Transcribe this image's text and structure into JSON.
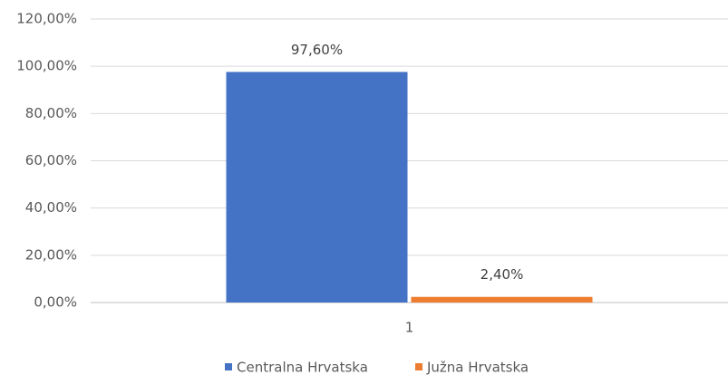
{
  "chart_data": {
    "type": "bar",
    "categories": [
      "1"
    ],
    "series": [
      {
        "name": "Centralna Hrvatska",
        "color": "#4472c4",
        "values": [
          97.6
        ],
        "value_labels": [
          "97,60%"
        ]
      },
      {
        "name": "Južna Hrvatska",
        "color": "#ed7d31",
        "values": [
          2.4
        ],
        "value_labels": [
          "2,40%"
        ]
      }
    ],
    "ylim": [
      0,
      120
    ],
    "yticks": [
      {
        "value": 0,
        "label": "0,00%"
      },
      {
        "value": 20,
        "label": "20,00%"
      },
      {
        "value": 40,
        "label": "40,00%"
      },
      {
        "value": 60,
        "label": "60,00%"
      },
      {
        "value": 80,
        "label": "80,00%"
      },
      {
        "value": 100,
        "label": "100,00%"
      },
      {
        "value": 120,
        "label": "120,00%"
      }
    ],
    "grid": true,
    "legend": "bottom"
  }
}
